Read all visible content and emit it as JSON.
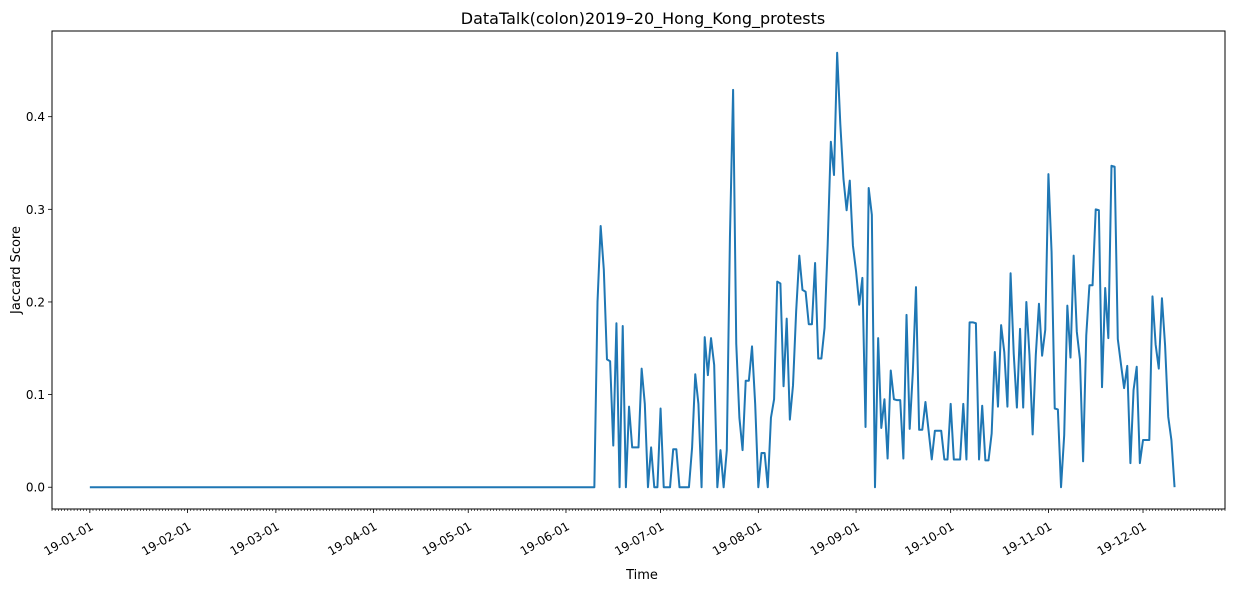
{
  "chart_data": {
    "type": "line",
    "title": "DataTalk(colon)2019–20_Hong_Kong_protests",
    "xlabel": "Time",
    "ylabel": "Jaccard Score",
    "x_axis": "date",
    "xlim": [
      "2018-12-20",
      "2019-12-27"
    ],
    "ylim": [
      -0.0235,
      0.4925
    ],
    "x_ticks": [
      {
        "date": "2019-01-01",
        "label": "19-01-01"
      },
      {
        "date": "2019-02-01",
        "label": "19-02-01"
      },
      {
        "date": "2019-03-01",
        "label": "19-03-01"
      },
      {
        "date": "2019-04-01",
        "label": "19-04-01"
      },
      {
        "date": "2019-05-01",
        "label": "19-05-01"
      },
      {
        "date": "2019-06-01",
        "label": "19-06-01"
      },
      {
        "date": "2019-07-01",
        "label": "19-07-01"
      },
      {
        "date": "2019-08-01",
        "label": "19-08-01"
      },
      {
        "date": "2019-09-01",
        "label": "19-09-01"
      },
      {
        "date": "2019-10-01",
        "label": "19-10-01"
      },
      {
        "date": "2019-11-01",
        "label": "19-11-01"
      },
      {
        "date": "2019-12-01",
        "label": "19-12-01"
      }
    ],
    "y_ticks": [
      {
        "value": 0.0,
        "label": "0.0"
      },
      {
        "value": 0.1,
        "label": "0.1"
      },
      {
        "value": 0.2,
        "label": "0.2"
      },
      {
        "value": 0.3,
        "label": "0.3"
      },
      {
        "value": 0.4,
        "label": "0.4"
      }
    ],
    "grid": false,
    "series": [
      {
        "color": "#1f77b4",
        "x": [
          "2019-01-01",
          "2019-06-10",
          "2019-06-11",
          "2019-06-12",
          "2019-06-13",
          "2019-06-14",
          "2019-06-15",
          "2019-06-16",
          "2019-06-17",
          "2019-06-18",
          "2019-06-19",
          "2019-06-20",
          "2019-06-21",
          "2019-06-22",
          "2019-06-23",
          "2019-06-24",
          "2019-06-25",
          "2019-06-26",
          "2019-06-27",
          "2019-06-28",
          "2019-06-29",
          "2019-06-30",
          "2019-07-01",
          "2019-07-02",
          "2019-07-03",
          "2019-07-04",
          "2019-07-05",
          "2019-07-06",
          "2019-07-07",
          "2019-07-08",
          "2019-07-09",
          "2019-07-10",
          "2019-07-11",
          "2019-07-12",
          "2019-07-13",
          "2019-07-14",
          "2019-07-15",
          "2019-07-16",
          "2019-07-17",
          "2019-07-18",
          "2019-07-19",
          "2019-07-20",
          "2019-07-21",
          "2019-07-22",
          "2019-07-23",
          "2019-07-24",
          "2019-07-25",
          "2019-07-26",
          "2019-07-27",
          "2019-07-28",
          "2019-07-29",
          "2019-07-30",
          "2019-07-31",
          "2019-08-01",
          "2019-08-02",
          "2019-08-03",
          "2019-08-04",
          "2019-08-05",
          "2019-08-06",
          "2019-08-07",
          "2019-08-08",
          "2019-08-09",
          "2019-08-10",
          "2019-08-11",
          "2019-08-12",
          "2019-08-13",
          "2019-08-14",
          "2019-08-15",
          "2019-08-16",
          "2019-08-17",
          "2019-08-18",
          "2019-08-19",
          "2019-08-20",
          "2019-08-21",
          "2019-08-22",
          "2019-08-23",
          "2019-08-24",
          "2019-08-25",
          "2019-08-26",
          "2019-08-27",
          "2019-08-28",
          "2019-08-29",
          "2019-08-30",
          "2019-08-31",
          "2019-09-01",
          "2019-09-02",
          "2019-09-03",
          "2019-09-04",
          "2019-09-05",
          "2019-09-06",
          "2019-09-07",
          "2019-09-08",
          "2019-09-09",
          "2019-09-10",
          "2019-09-11",
          "2019-09-12",
          "2019-09-13",
          "2019-09-14",
          "2019-09-15",
          "2019-09-16",
          "2019-09-17",
          "2019-09-18",
          "2019-09-19",
          "2019-09-20",
          "2019-09-21",
          "2019-09-22",
          "2019-09-23",
          "2019-09-24",
          "2019-09-25",
          "2019-09-26",
          "2019-09-27",
          "2019-09-28",
          "2019-09-29",
          "2019-09-30",
          "2019-10-01",
          "2019-10-02",
          "2019-10-03",
          "2019-10-04",
          "2019-10-05",
          "2019-10-06",
          "2019-10-07",
          "2019-10-08",
          "2019-10-09",
          "2019-10-10",
          "2019-10-11",
          "2019-10-12",
          "2019-10-13",
          "2019-10-14",
          "2019-10-15",
          "2019-10-16",
          "2019-10-17",
          "2019-10-18",
          "2019-10-19",
          "2019-10-20",
          "2019-10-21",
          "2019-10-22",
          "2019-10-23",
          "2019-10-24",
          "2019-10-25",
          "2019-10-26",
          "2019-10-27",
          "2019-10-28",
          "2019-10-29",
          "2019-10-30",
          "2019-10-31",
          "2019-11-01",
          "2019-11-02",
          "2019-11-03",
          "2019-11-04",
          "2019-11-05",
          "2019-11-06",
          "2019-11-07",
          "2019-11-08",
          "2019-11-09",
          "2019-11-10",
          "2019-11-11",
          "2019-11-12",
          "2019-11-13",
          "2019-11-14",
          "2019-11-15",
          "2019-11-16",
          "2019-11-17",
          "2019-11-18",
          "2019-11-19",
          "2019-11-20",
          "2019-11-21",
          "2019-11-22",
          "2019-11-23",
          "2019-11-24",
          "2019-11-25",
          "2019-11-26",
          "2019-11-27",
          "2019-11-28",
          "2019-11-29",
          "2019-11-30",
          "2019-12-01",
          "2019-12-02",
          "2019-12-03",
          "2019-12-04",
          "2019-12-05",
          "2019-12-06",
          "2019-12-07",
          "2019-12-08",
          "2019-12-09",
          "2019-12-10",
          "2019-12-11"
        ],
        "y": [
          0.0,
          0.0,
          0.2,
          0.282,
          0.235,
          0.138,
          0.136,
          0.045,
          0.177,
          0.0,
          0.174,
          0.0,
          0.087,
          0.043,
          0.043,
          0.043,
          0.128,
          0.09,
          0.0,
          0.043,
          0.0,
          0.0,
          0.085,
          0.0,
          0.0,
          0.0,
          0.041,
          0.041,
          0.0,
          0.0,
          0.0,
          0.0,
          0.043,
          0.122,
          0.09,
          0.0,
          0.162,
          0.121,
          0.161,
          0.132,
          0.0,
          0.04,
          0.0,
          0.04,
          0.27,
          0.429,
          0.155,
          0.075,
          0.04,
          0.115,
          0.115,
          0.152,
          0.09,
          0.0,
          0.037,
          0.037,
          0.0,
          0.075,
          0.095,
          0.222,
          0.22,
          0.109,
          0.182,
          0.073,
          0.11,
          0.19,
          0.25,
          0.213,
          0.211,
          0.176,
          0.176,
          0.242,
          0.139,
          0.139,
          0.172,
          0.262,
          0.373,
          0.337,
          0.469,
          0.392,
          0.333,
          0.299,
          0.331,
          0.261,
          0.233,
          0.197,
          0.226,
          0.065,
          0.323,
          0.294,
          0.0,
          0.161,
          0.064,
          0.095,
          0.031,
          0.126,
          0.095,
          0.094,
          0.094,
          0.031,
          0.186,
          0.063,
          0.124,
          0.216,
          0.062,
          0.062,
          0.092,
          0.061,
          0.03,
          0.061,
          0.061,
          0.061,
          0.03,
          0.03,
          0.09,
          0.03,
          0.03,
          0.03,
          0.09,
          0.03,
          0.178,
          0.178,
          0.177,
          0.03,
          0.088,
          0.029,
          0.029,
          0.058,
          0.146,
          0.087,
          0.175,
          0.146,
          0.087,
          0.231,
          0.144,
          0.086,
          0.171,
          0.086,
          0.2,
          0.142,
          0.057,
          0.143,
          0.198,
          0.142,
          0.17,
          0.338,
          0.254,
          0.085,
          0.084,
          0.0,
          0.056,
          0.196,
          0.14,
          0.25,
          0.168,
          0.138,
          0.028,
          0.164,
          0.218,
          0.218,
          0.3,
          0.299,
          0.108,
          0.215,
          0.161,
          0.347,
          0.346,
          0.16,
          0.133,
          0.107,
          0.131,
          0.026,
          0.105,
          0.13,
          0.026,
          0.051,
          0.051,
          0.051,
          0.206,
          0.154,
          0.128,
          0.204,
          0.153,
          0.076,
          0.051,
          0.0
        ]
      }
    ]
  }
}
